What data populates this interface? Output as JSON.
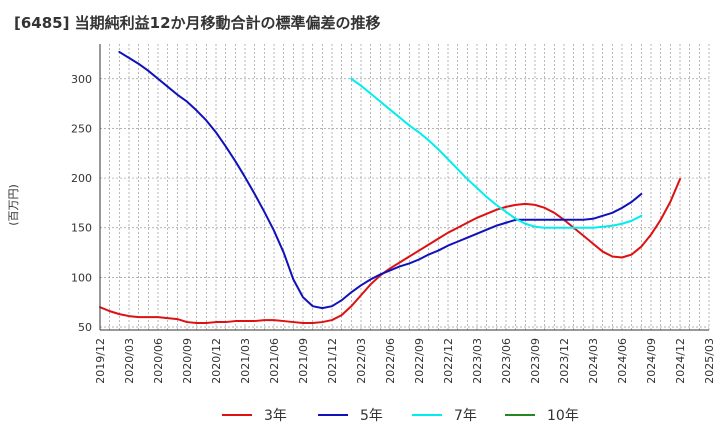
{
  "chart_data": {
    "type": "line",
    "title": "[6485]  当期純利益12か月移動合計の標準偏差の推移",
    "ylabel": "(百万円)",
    "xlabel": "",
    "ylim": [
      47,
      335
    ],
    "yticks": [
      50,
      100,
      150,
      200,
      250,
      300
    ],
    "grid": true,
    "legend_position": "bottom",
    "x_ticks": [
      "2019/12",
      "2020/03",
      "2020/06",
      "2020/09",
      "2020/12",
      "2021/03",
      "2021/06",
      "2021/09",
      "2021/12",
      "2022/03",
      "2022/06",
      "2022/09",
      "2022/12",
      "2023/03",
      "2023/06",
      "2023/09",
      "2023/12",
      "2024/03",
      "2024/06",
      "2024/09",
      "2024/12",
      "2025/03"
    ],
    "x_months": [
      "2019/12",
      "2020/01",
      "2020/02",
      "2020/03",
      "2020/04",
      "2020/05",
      "2020/06",
      "2020/07",
      "2020/08",
      "2020/09",
      "2020/10",
      "2020/11",
      "2020/12",
      "2021/01",
      "2021/02",
      "2021/03",
      "2021/04",
      "2021/05",
      "2021/06",
      "2021/07",
      "2021/08",
      "2021/09",
      "2021/10",
      "2021/11",
      "2021/12",
      "2022/01",
      "2022/02",
      "2022/03",
      "2022/04",
      "2022/05",
      "2022/06",
      "2022/07",
      "2022/08",
      "2022/09",
      "2022/10",
      "2022/11",
      "2022/12",
      "2023/01",
      "2023/02",
      "2023/03",
      "2023/04",
      "2023/05",
      "2023/06",
      "2023/07",
      "2023/08",
      "2023/09",
      "2023/10",
      "2023/11",
      "2023/12",
      "2024/01",
      "2024/02",
      "2024/03",
      "2024/04",
      "2024/05",
      "2024/06",
      "2024/07",
      "2024/08",
      "2024/09",
      "2024/10",
      "2024/11",
      "2024/12"
    ],
    "series": [
      {
        "name": "3年",
        "color": "#dd1111",
        "start": "2019/12",
        "values": [
          70,
          66,
          63,
          61,
          60,
          60,
          60,
          59,
          58,
          55,
          54,
          54,
          55,
          55,
          56,
          56,
          56,
          57,
          57,
          56,
          55,
          54,
          54,
          55,
          57,
          62,
          71,
          82,
          93,
          102,
          109,
          115,
          121,
          127,
          133,
          139,
          145,
          150,
          155,
          160,
          164,
          168,
          171,
          173,
          174,
          173,
          170,
          165,
          158,
          150,
          142,
          134,
          126,
          121,
          120,
          123,
          131,
          143,
          158,
          176,
          199
        ]
      },
      {
        "name": "5年",
        "color": "#1111bb",
        "start": "2020/02",
        "values": [
          327,
          321,
          315,
          308,
          300,
          292,
          284,
          277,
          268,
          258,
          246,
          232,
          217,
          201,
          184,
          166,
          147,
          125,
          98,
          80,
          71,
          69,
          71,
          77,
          85,
          92,
          98,
          103,
          107,
          111,
          114,
          118,
          123,
          127,
          132,
          136,
          140,
          144,
          148,
          152,
          155,
          158,
          158,
          158,
          158,
          158,
          158,
          158,
          158,
          159,
          162,
          165,
          170,
          176,
          184
        ]
      },
      {
        "name": "7年",
        "color": "#00eeee",
        "start": "2022/02",
        "values": [
          300,
          293,
          285,
          277,
          269,
          261,
          253,
          246,
          238,
          229,
          219,
          209,
          199,
          190,
          181,
          173,
          166,
          159,
          154,
          151,
          150,
          150,
          150,
          150,
          150,
          150,
          151,
          152,
          154,
          157,
          162
        ]
      },
      {
        "name": "10年",
        "color": "#228822",
        "start": "2022/02",
        "values": []
      }
    ]
  }
}
